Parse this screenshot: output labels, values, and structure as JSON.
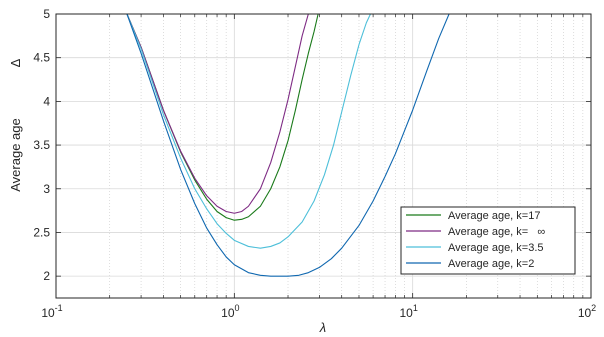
{
  "chart_data": {
    "type": "line",
    "xscale": "log",
    "xlim": [
      0.1,
      100
    ],
    "ylim": [
      1.75,
      5
    ],
    "x_ticks": [
      {
        "base": "10",
        "exp": "-1",
        "value": 0.1
      },
      {
        "base": "10",
        "exp": "0",
        "value": 1
      },
      {
        "base": "10",
        "exp": "1",
        "value": 10
      },
      {
        "base": "10",
        "exp": "2",
        "value": 100
      }
    ],
    "y_ticks": [
      "2",
      "2.5",
      "3",
      "3.5",
      "4",
      "4.5",
      "5"
    ],
    "xlabel": "λ",
    "ylabel": "Average age",
    "ylabel_symbol": "Δ",
    "grid": true,
    "legend_position": "bottom-right",
    "series": [
      {
        "name": "Average age, k=17",
        "color": "#1a7a1a",
        "x": [
          0.25,
          0.3,
          0.4,
          0.5,
          0.6,
          0.7,
          0.8,
          0.9,
          1.0,
          1.1,
          1.2,
          1.4,
          1.6,
          1.8,
          2.0,
          2.2,
          2.4,
          2.6,
          2.8,
          2.95
        ],
        "y": [
          5.0,
          4.62,
          3.9,
          3.42,
          3.1,
          2.88,
          2.74,
          2.67,
          2.64,
          2.65,
          2.68,
          2.8,
          3.0,
          3.25,
          3.55,
          3.9,
          4.25,
          4.55,
          4.8,
          5.0
        ]
      },
      {
        "name": "Average age, k=   ∞",
        "color": "#7e2b84",
        "x": [
          0.25,
          0.3,
          0.4,
          0.5,
          0.6,
          0.7,
          0.8,
          0.9,
          1.0,
          1.1,
          1.2,
          1.4,
          1.6,
          1.8,
          2.0,
          2.2,
          2.4,
          2.6
        ],
        "y": [
          5.0,
          4.62,
          3.9,
          3.43,
          3.12,
          2.92,
          2.8,
          2.74,
          2.72,
          2.74,
          2.8,
          3.0,
          3.3,
          3.65,
          4.02,
          4.4,
          4.75,
          5.0
        ]
      },
      {
        "name": "Average age, k=3.5",
        "color": "#4dbfd9",
        "x": [
          0.25,
          0.3,
          0.4,
          0.5,
          0.6,
          0.7,
          0.8,
          0.9,
          1.0,
          1.2,
          1.4,
          1.6,
          1.8,
          2.0,
          2.4,
          2.8,
          3.2,
          3.6,
          4.0,
          4.5,
          5.0,
          5.5,
          5.8
        ],
        "y": [
          5.0,
          4.6,
          3.85,
          3.35,
          3.0,
          2.77,
          2.6,
          2.49,
          2.41,
          2.34,
          2.32,
          2.34,
          2.38,
          2.45,
          2.62,
          2.86,
          3.16,
          3.5,
          3.88,
          4.3,
          4.65,
          4.9,
          5.0
        ]
      },
      {
        "name": "Average age, k=2",
        "color": "#1068b0",
        "x": [
          0.25,
          0.3,
          0.4,
          0.5,
          0.6,
          0.7,
          0.8,
          0.9,
          1.0,
          1.2,
          1.4,
          1.6,
          1.8,
          2.0,
          2.3,
          2.6,
          3.0,
          3.5,
          4.0,
          5.0,
          6.0,
          7.0,
          8.0,
          10.0,
          12.0,
          14.0,
          16.0
        ],
        "y": [
          5.0,
          4.55,
          3.78,
          3.22,
          2.83,
          2.55,
          2.36,
          2.22,
          2.13,
          2.04,
          2.01,
          2.0,
          2.0,
          2.0,
          2.01,
          2.04,
          2.1,
          2.2,
          2.32,
          2.58,
          2.86,
          3.14,
          3.4,
          3.9,
          4.35,
          4.72,
          5.0
        ]
      }
    ]
  }
}
